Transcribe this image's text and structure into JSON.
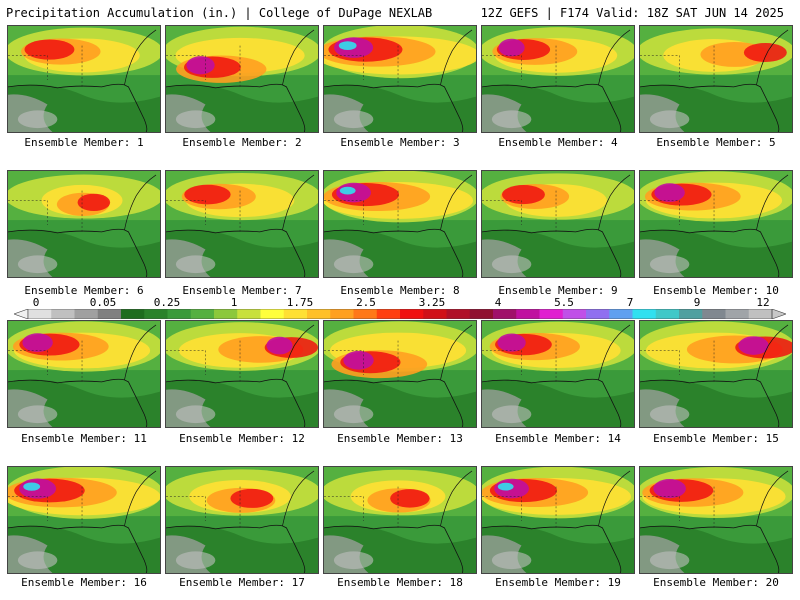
{
  "header": {
    "left": "Precipitation Accumulation (in.) | College of DuPage NEXLAB",
    "right": "12Z GEFS | F174 Valid: 18Z SAT JUN 14 2025"
  },
  "panel_label_prefix": "Ensemble Member:",
  "members": [
    {
      "label": "Ensemble Member: 1",
      "intensity": 0.55,
      "hot": "nw"
    },
    {
      "label": "Ensemble Member: 2",
      "intensity": 0.65,
      "hot": "w"
    },
    {
      "label": "Ensemble Member: 3",
      "intensity": 0.9,
      "hot": "nw"
    },
    {
      "label": "Ensemble Member: 4",
      "intensity": 0.6,
      "hot": "nw"
    },
    {
      "label": "Ensemble Member: 5",
      "intensity": 0.45,
      "hot": "ne"
    },
    {
      "label": "Ensemble Member: 6",
      "intensity": 0.3,
      "hot": "c"
    },
    {
      "label": "Ensemble Member: 7",
      "intensity": 0.5,
      "hot": "nw"
    },
    {
      "label": "Ensemble Member: 8",
      "intensity": 0.8,
      "hot": "nw"
    },
    {
      "label": "Ensemble Member: 9",
      "intensity": 0.45,
      "hot": "nw"
    },
    {
      "label": "Ensemble Member: 10",
      "intensity": 0.7,
      "hot": "nw"
    },
    {
      "label": "Ensemble Member: 11",
      "intensity": 0.7,
      "hot": "nw"
    },
    {
      "label": "Ensemble Member: 12",
      "intensity": 0.6,
      "hot": "ne"
    },
    {
      "label": "Ensemble Member: 13",
      "intensity": 0.7,
      "hot": "w"
    },
    {
      "label": "Ensemble Member: 14",
      "intensity": 0.65,
      "hot": "nw"
    },
    {
      "label": "Ensemble Member: 15",
      "intensity": 0.7,
      "hot": "ne"
    },
    {
      "label": "Ensemble Member: 16",
      "intensity": 0.85,
      "hot": "nw"
    },
    {
      "label": "Ensemble Member: 17",
      "intensity": 0.45,
      "hot": "c"
    },
    {
      "label": "Ensemble Member: 18",
      "intensity": 0.4,
      "hot": "c"
    },
    {
      "label": "Ensemble Member: 19",
      "intensity": 0.8,
      "hot": "nw"
    },
    {
      "label": "Ensemble Member: 20",
      "intensity": 0.75,
      "hot": "nw"
    }
  ],
  "colorbar": {
    "tick_labels": [
      "0",
      "0.05",
      "0.25",
      "1",
      "1.75",
      "2.5",
      "3.25",
      "4",
      "5.5",
      "7",
      "9",
      "12"
    ],
    "colors": [
      "#e0e0e0",
      "#c0c0c0",
      "#a0a0a0",
      "#808080",
      "#1f6d1f",
      "#2b822b",
      "#3a9a3a",
      "#55b040",
      "#8cc83c",
      "#c8e03c",
      "#ffff3c",
      "#ffe033",
      "#ffc028",
      "#ffa020",
      "#ff7818",
      "#ff4010",
      "#f01010",
      "#d01018",
      "#b01028",
      "#901030",
      "#a0106a",
      "#c010a0",
      "#e020d0",
      "#c050e8",
      "#9070f0",
      "#60a0f0",
      "#30e0f0",
      "#40c8c8",
      "#50a0a0",
      "#808890",
      "#a0a4a8",
      "#c0c0c0"
    ]
  }
}
